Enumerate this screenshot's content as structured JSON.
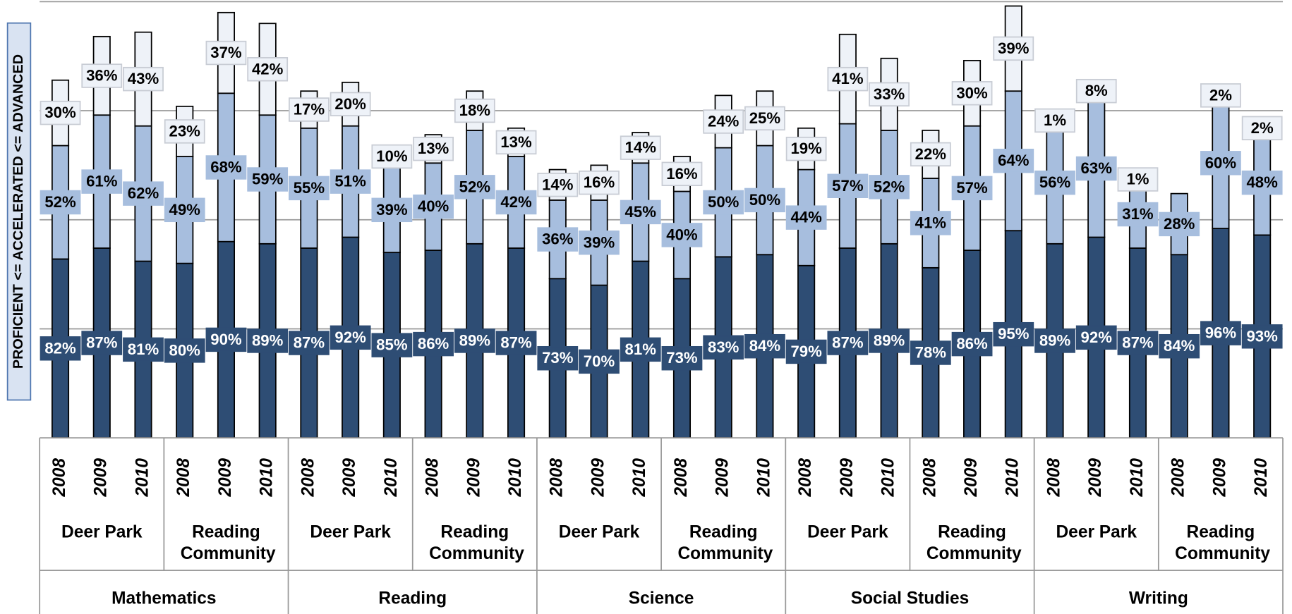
{
  "chart_data": {
    "type": "stacked_bar",
    "y_label": "PROFICIENT <= ACCELERATED <= ADVANCED",
    "categories": [
      "2008",
      "2009",
      "2010",
      "2008",
      "2009",
      "2010",
      "2008",
      "2009",
      "2010",
      "2008",
      "2009",
      "2010",
      "2008",
      "2009",
      "2010",
      "2008",
      "2009",
      "2010",
      "2008",
      "2009",
      "2010",
      "2008",
      "2009",
      "2010",
      "2008",
      "2009",
      "2010",
      "2008",
      "2009",
      "2010"
    ],
    "schools": [
      "Deer Park",
      "Reading Community",
      "Deer Park",
      "Reading Community",
      "Deer Park",
      "Reading Community",
      "Deer Park",
      "Reading Community",
      "Deer Park",
      "Reading Community"
    ],
    "subjects": [
      "Mathematics",
      "Reading",
      "Science",
      "Social Studies",
      "Writing"
    ],
    "series": [
      {
        "color": "#2E4D74",
        "label_text_color": "#ffffff",
        "values": [
          82,
          87,
          81,
          80,
          90,
          89,
          87,
          92,
          85,
          86,
          89,
          87,
          73,
          70,
          81,
          73,
          83,
          84,
          79,
          87,
          89,
          78,
          86,
          95,
          89,
          92,
          87,
          84,
          96,
          93
        ],
        "value_labels": [
          "82%",
          "87%",
          "81%",
          "80%",
          "90%",
          "89%",
          "87%",
          "92%",
          "85%",
          "86%",
          "89%",
          "87%",
          "73%",
          "70%",
          "81%",
          "73%",
          "83%",
          "84%",
          "79%",
          "87%",
          "89%",
          "78%",
          "86%",
          "95%",
          "89%",
          "92%",
          "87%",
          "84%",
          "96%",
          "93%"
        ]
      },
      {
        "color": "#A7BEDE",
        "label_text_color": "#000000",
        "values": [
          52,
          61,
          62,
          49,
          68,
          59,
          55,
          51,
          39,
          40,
          52,
          42,
          36,
          39,
          45,
          40,
          50,
          50,
          44,
          57,
          52,
          41,
          57,
          64,
          56,
          63,
          31,
          28,
          60,
          48
        ],
        "value_labels": [
          "52%",
          "61%",
          "62%",
          "49%",
          "68%",
          "59%",
          "55%",
          "51%",
          "39%",
          "40%",
          "52%",
          "42%",
          "36%",
          "39%",
          "45%",
          "40%",
          "50%",
          "50%",
          "44%",
          "57%",
          "52%",
          "41%",
          "57%",
          "64%",
          "56%",
          "63%",
          "31%",
          "28%",
          "60%",
          "48%"
        ]
      },
      {
        "color": "#EEF2F8",
        "label_text_color": "#000000",
        "values": [
          30,
          36,
          43,
          23,
          37,
          42,
          17,
          20,
          10,
          13,
          18,
          13,
          14,
          16,
          14,
          16,
          24,
          25,
          19,
          41,
          33,
          22,
          30,
          39,
          1,
          8,
          1,
          null,
          2,
          2
        ],
        "value_labels": [
          "30%",
          "36%",
          "43%",
          "23%",
          "37%",
          "42%",
          "17%",
          "20%",
          "10%",
          "13%",
          "18%",
          "13%",
          "14%",
          "16%",
          "14%",
          "16%",
          "24%",
          "25%",
          "19%",
          "41%",
          "33%",
          "22%",
          "30%",
          "39%",
          "1%",
          "8%",
          "1%",
          null,
          "2%",
          "2%"
        ]
      }
    ],
    "ylim": [
      0,
      200
    ],
    "yticks": [
      50,
      100,
      150,
      200
    ],
    "grid": true
  }
}
